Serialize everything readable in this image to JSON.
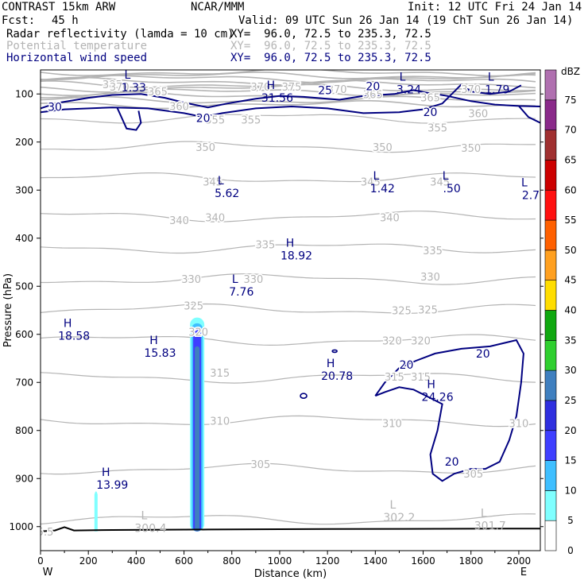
{
  "header": {
    "model": "CONTRAST 15km ARW",
    "org": "NCAR/MMM",
    "init": "Init: 12 UTC Fri 24 Jan 14",
    "fcst_label": "Fcst:",
    "fcst_value": "45 h",
    "valid": "Valid: 09 UTC Sun 26 Jan 14 (19 ChT Sun 26 Jan 14)"
  },
  "fields": [
    {
      "name": "Radar reflectivity (lamda = 10 cm)",
      "xy": "XY=  96.0, 72.5 to 235.3, 72.5",
      "color": "#000000"
    },
    {
      "name": "Potential temperature",
      "xy": "XY=  96.0, 72.5 to 235.3, 72.5",
      "color": "#b4b4b4"
    },
    {
      "name": "Horizontal wind speed",
      "xy": "XY=  96.0, 72.5 to 235.3, 72.5",
      "color": "#000080"
    }
  ],
  "chart_data": {
    "type": "cross-section",
    "xlabel": "Distance (km)",
    "ylabel": "Pressure (hPa)",
    "xlim": [
      0,
      2090
    ],
    "ylim": [
      1050,
      50
    ],
    "xticks": [
      0,
      200,
      400,
      600,
      800,
      1000,
      1200,
      1400,
      1600,
      1800,
      2000
    ],
    "yticks": [
      100,
      200,
      300,
      400,
      500,
      600,
      700,
      800,
      900,
      1000
    ],
    "x_end_labels": {
      "left": "W",
      "right": "E"
    },
    "colorbar": {
      "unit": "dBZ",
      "levels": [
        0,
        5,
        10,
        15,
        20,
        25,
        30,
        35,
        40,
        45,
        50,
        55,
        60,
        65,
        70,
        75
      ],
      "colors": [
        "#ffffff",
        "#7fffff",
        "#3fbfff",
        "#3f3fff",
        "#2f2fdf",
        "#3f7fbf",
        "#2fcf2f",
        "#10a810",
        "#ffdd00",
        "#ffa020",
        "#ff6000",
        "#ff1010",
        "#cc0000",
        "#a03030",
        "#8a2a8a",
        "#b070b0"
      ]
    },
    "reflectivity_features": [
      {
        "x": 655,
        "p_top": 565,
        "p_bottom": 1010,
        "max_dbz": 20
      },
      {
        "x": 232,
        "p_top": 920,
        "p_bottom": 1010,
        "max_dbz": 5
      }
    ],
    "theta_labels": [
      {
        "x": 300,
        "p": 80,
        "v": "385"
      },
      {
        "x": 330,
        "p": 85,
        "v": "370"
      },
      {
        "x": 490,
        "p": 95,
        "v": "365"
      },
      {
        "x": 920,
        "p": 85,
        "v": "370"
      },
      {
        "x": 1050,
        "p": 85,
        "v": "375"
      },
      {
        "x": 1240,
        "p": 90,
        "v": "370"
      },
      {
        "x": 1390,
        "p": 100,
        "v": "365"
      },
      {
        "x": 1630,
        "p": 107,
        "v": "365"
      },
      {
        "x": 1800,
        "p": 90,
        "v": "370"
      },
      {
        "x": 580,
        "p": 125,
        "v": "360"
      },
      {
        "x": 1830,
        "p": 140,
        "v": "360"
      },
      {
        "x": 730,
        "p": 153,
        "v": "355"
      },
      {
        "x": 880,
        "p": 153,
        "v": "355"
      },
      {
        "x": 1660,
        "p": 170,
        "v": "355"
      },
      {
        "x": 690,
        "p": 210,
        "v": "350"
      },
      {
        "x": 1430,
        "p": 210,
        "v": "350"
      },
      {
        "x": 1800,
        "p": 212,
        "v": "350"
      },
      {
        "x": 720,
        "p": 282,
        "v": "345"
      },
      {
        "x": 1380,
        "p": 282,
        "v": "345"
      },
      {
        "x": 1670,
        "p": 282,
        "v": "345"
      },
      {
        "x": 580,
        "p": 362,
        "v": "340"
      },
      {
        "x": 730,
        "p": 357,
        "v": "340"
      },
      {
        "x": 1460,
        "p": 357,
        "v": "340"
      },
      {
        "x": 940,
        "p": 413,
        "v": "335"
      },
      {
        "x": 1640,
        "p": 425,
        "v": "335"
      },
      {
        "x": 630,
        "p": 485,
        "v": "330"
      },
      {
        "x": 890,
        "p": 485,
        "v": "330"
      },
      {
        "x": 1630,
        "p": 480,
        "v": "330"
      },
      {
        "x": 640,
        "p": 540,
        "v": "325"
      },
      {
        "x": 1510,
        "p": 550,
        "v": "325"
      },
      {
        "x": 1620,
        "p": 548,
        "v": "325"
      },
      {
        "x": 660,
        "p": 595,
        "v": "320"
      },
      {
        "x": 1470,
        "p": 613,
        "v": "320"
      },
      {
        "x": 1590,
        "p": 613,
        "v": "320"
      },
      {
        "x": 750,
        "p": 680,
        "v": "315"
      },
      {
        "x": 1480,
        "p": 688,
        "v": "315"
      },
      {
        "x": 1590,
        "p": 688,
        "v": "315"
      },
      {
        "x": 750,
        "p": 780,
        "v": "310"
      },
      {
        "x": 1470,
        "p": 785,
        "v": "310"
      },
      {
        "x": 2000,
        "p": 785,
        "v": "310"
      },
      {
        "x": 920,
        "p": 870,
        "v": "305"
      },
      {
        "x": 1810,
        "p": 890,
        "v": "305"
      },
      {
        "x": 20,
        "p": 1010,
        "v": "5.5"
      }
    ],
    "extrema": [
      {
        "kind": "L",
        "x": 390,
        "p": 68,
        "value": "1.33"
      },
      {
        "kind": "H",
        "x": 990,
        "p": 90,
        "value": "31.56"
      },
      {
        "kind": "L",
        "x": 1540,
        "p": 72,
        "value": "3.24"
      },
      {
        "kind": "L",
        "x": 1910,
        "p": 72,
        "value": "1.79"
      },
      {
        "kind": "L",
        "x": 780,
        "p": 288,
        "value": "5.62"
      },
      {
        "kind": "L",
        "x": 1430,
        "p": 278,
        "value": "1.42"
      },
      {
        "kind": "L",
        "x": 1720,
        "p": 278,
        "value": ".50"
      },
      {
        "kind": "L",
        "x": 2050,
        "p": 292,
        "value": "2.7"
      },
      {
        "kind": "H",
        "x": 1070,
        "p": 418,
        "value": "18.92"
      },
      {
        "kind": "L",
        "x": 840,
        "p": 493,
        "value": "7.76"
      },
      {
        "kind": "H",
        "x": 140,
        "p": 585,
        "value": "18.58"
      },
      {
        "kind": "H",
        "x": 500,
        "p": 620,
        "value": "15.83"
      },
      {
        "kind": "H",
        "x": 1240,
        "p": 668,
        "value": "20.78"
      },
      {
        "kind": "H",
        "x": 1660,
        "p": 712,
        "value": "24.26"
      },
      {
        "kind": "H",
        "x": 300,
        "p": 895,
        "value": "13.99"
      },
      {
        "kind": "L",
        "x": 460,
        "p": 985,
        "value": "300.4"
      },
      {
        "kind": "L",
        "x": 1500,
        "p": 962,
        "value": "302.2"
      },
      {
        "kind": "L",
        "x": 1880,
        "p": 980,
        "value": "301.7"
      }
    ],
    "wind_labels": [
      {
        "x": 60,
        "p": 127,
        "v": "30"
      },
      {
        "x": 1390,
        "p": 84,
        "v": "20"
      },
      {
        "x": 1190,
        "p": 92,
        "v": "25"
      },
      {
        "x": 680,
        "p": 150,
        "v": "20"
      },
      {
        "x": 1630,
        "p": 138,
        "v": "20"
      },
      {
        "x": 1850,
        "p": 640,
        "v": "20"
      },
      {
        "x": 1530,
        "p": 663,
        "v": "20"
      },
      {
        "x": 1720,
        "p": 865,
        "v": "20"
      }
    ]
  }
}
